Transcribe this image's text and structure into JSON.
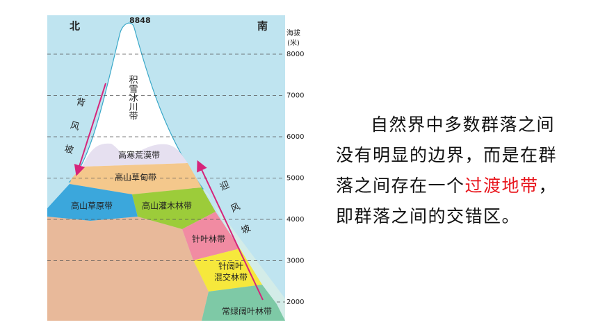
{
  "diagram": {
    "north": "北",
    "south": "南",
    "peak": "8848",
    "axis_title_line1": "海拔",
    "axis_title_line2": "(米)",
    "elevation_ticks": [
      8000,
      7000,
      6000,
      5000,
      4000,
      3000,
      2000
    ],
    "zones": {
      "snow": "积雪冰川带",
      "desert": "高寒荒漠带",
      "meadow": "高山草甸带",
      "steppe": "高山草原带",
      "shrub": "高山灌木林带",
      "conifer": "针叶林带",
      "mixed_line1": "针阔叶",
      "mixed_line2": "混交林带",
      "broadleaf": "常绿阔叶林带"
    },
    "leeward": "背风坡",
    "windward": "迎风坡"
  },
  "text": {
    "parts": [
      "自然界中多数群落之间没有明显的边界，而是在群落之间存在一个",
      "过渡地带",
      "，即群落之间的交错区。"
    ]
  }
}
